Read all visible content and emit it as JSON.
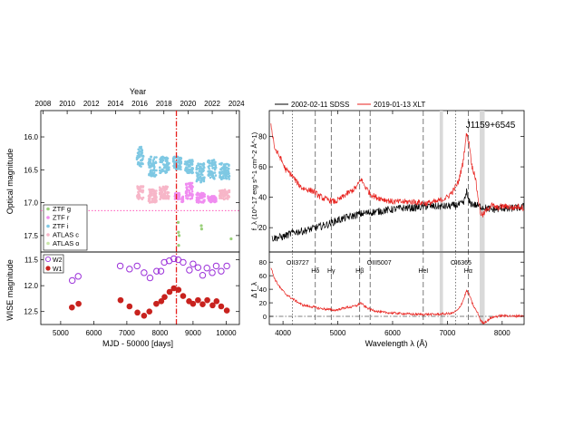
{
  "chart_data": [
    {
      "type": "scatter",
      "panel": "optical-light-curve",
      "xlabel": "",
      "ylabel": "Optical magnitude",
      "top_axis_label": "Year",
      "top_ticks": [
        "2008",
        "2010",
        "2012",
        "2014",
        "2016",
        "2018",
        "2020",
        "2022",
        "2024"
      ],
      "top_tick_mjd": [
        4466,
        5197,
        5927,
        6658,
        7388,
        8119,
        8849,
        9580,
        10310
      ],
      "xlim": [
        4400,
        10400
      ],
      "ylim": [
        17.75,
        15.6
      ],
      "yticks": [
        "16.0",
        "16.5",
        "17.0",
        "17.5"
      ],
      "grid": false,
      "legend": {
        "position": "bottom-left",
        "entries": [
          "ZTF g",
          "ZTF r",
          "ZTF i",
          "ATLAS c",
          "ATLAS o"
        ]
      },
      "series": [
        {
          "name": "ZTF i",
          "color": "#7ec8e3",
          "ranges": [
            [
              7300,
              7500,
              16.15,
              16.45
            ],
            [
              7650,
              7900,
              16.3,
              16.6
            ],
            [
              7990,
              8280,
              16.3,
              16.55
            ],
            [
              8400,
              8650,
              16.3,
              16.5
            ],
            [
              8750,
              9000,
              16.35,
              16.55
            ],
            [
              9100,
              9350,
              16.4,
              16.7
            ],
            [
              9450,
              9700,
              16.35,
              16.65
            ],
            [
              9800,
              10100,
              16.4,
              16.65
            ]
          ]
        },
        {
          "name": "ZTF r",
          "color": "#f08cf0",
          "ranges": [
            [
              8450,
              8600,
              16.85,
              16.95
            ],
            [
              8650,
              8700,
              16.9,
              17.0
            ],
            [
              8780,
              9000,
              16.7,
              16.95
            ],
            [
              9100,
              9350,
              16.85,
              17.0
            ],
            [
              9450,
              9700,
              16.9,
              17.0
            ]
          ]
        },
        {
          "name": "ATLAS o",
          "color": "#f7b6c8",
          "ranges": [
            [
              7300,
              7500,
              16.75,
              16.95
            ],
            [
              7650,
              7900,
              16.8,
              17.0
            ],
            [
              7990,
              8280,
              16.75,
              16.95
            ],
            [
              9800,
              10100,
              16.8,
              16.95
            ]
          ]
        },
        {
          "name": "ZTF g",
          "color": "#9ad07a",
          "points": [
            [
              8550,
              17.3
            ],
            [
              8560,
              17.45
            ],
            [
              8580,
              17.5
            ],
            [
              8565,
              17.65
            ],
            [
              9250,
              17.35
            ],
            [
              9260,
              17.4
            ],
            [
              10150,
              17.55
            ]
          ]
        }
      ],
      "annotations": {
        "vertical_line_mjd": 8497,
        "horizontal_line_mag": 17.12,
        "ztf_i_upper_envelope": [
          [
            7300,
            16.08
          ],
          [
            7700,
            16.22
          ],
          [
            8000,
            16.05
          ],
          [
            8300,
            16.12
          ],
          [
            8500,
            16.18
          ],
          [
            8750,
            16.22
          ],
          [
            9100,
            16.28
          ],
          [
            9450,
            16.22
          ],
          [
            9800,
            16.28
          ],
          [
            10100,
            16.32
          ]
        ]
      }
    },
    {
      "type": "scatter",
      "panel": "wise-light-curve",
      "xlabel": "MJD - 50000 [days]",
      "ylabel": "WISE magnitude",
      "xlim": [
        4400,
        10400
      ],
      "xticks": [
        "5000",
        "6000",
        "7000",
        "8000",
        "9000",
        "10000"
      ],
      "ylim": [
        12.75,
        11.35
      ],
      "yticks": [
        "11.5",
        "12.0",
        "12.5"
      ],
      "legend": {
        "position": "top-left",
        "entries": [
          "W2",
          "W1"
        ]
      },
      "series": [
        {
          "name": "W2",
          "marker": "open-circle",
          "color": "#9b30d9",
          "x": [
            5350,
            5530,
            6800,
            7080,
            7310,
            7520,
            7700,
            7900,
            8030,
            8130,
            8280,
            8420,
            8550,
            8700,
            8890,
            9000,
            9150,
            9290,
            9420,
            9580,
            9700,
            9850,
            10020
          ],
          "y": [
            11.9,
            11.82,
            11.62,
            11.68,
            11.62,
            11.75,
            11.85,
            11.72,
            11.72,
            11.55,
            11.52,
            11.48,
            11.5,
            11.55,
            11.7,
            11.58,
            11.65,
            11.8,
            11.66,
            11.75,
            11.62,
            11.72,
            11.62
          ]
        },
        {
          "name": "W1",
          "marker": "filled-circle",
          "color": "#c8221e",
          "x": [
            5340,
            5540,
            6810,
            7080,
            7320,
            7520,
            7680,
            7890,
            8040,
            8140,
            8290,
            8420,
            8560,
            8700,
            8880,
            9000,
            9150,
            9290,
            9430,
            9590,
            9710,
            9850,
            10020
          ],
          "y": [
            12.42,
            12.35,
            12.28,
            12.4,
            12.52,
            12.58,
            12.5,
            12.35,
            12.3,
            12.22,
            12.12,
            12.05,
            12.08,
            12.2,
            12.3,
            12.35,
            12.28,
            12.36,
            12.28,
            12.38,
            12.3,
            12.4,
            12.48
          ]
        }
      ],
      "annotations": {
        "vertical_line_mjd": 8497
      }
    },
    {
      "type": "line",
      "panel": "optical-spectrum",
      "title": "J1159+6545",
      "xlim": [
        3750,
        8400
      ],
      "ylim": [
        4,
        97
      ],
      "ylabel": "f_λ (10^-17 erg s^-1 cm^-2 Å^-1)",
      "yticks": [
        "20",
        "40",
        "60",
        "80"
      ],
      "legend": {
        "position": "top",
        "entries": [
          "2002-02-11 SDSS",
          "2019-01-13 XLT"
        ]
      },
      "series": [
        {
          "name": "2002-02-11 SDSS",
          "color": "#000000",
          "x": [
            3800,
            4000,
            4200,
            4400,
            4600,
            4800,
            5000,
            5200,
            5400,
            5600,
            5800,
            6000,
            6200,
            6400,
            6600,
            6800,
            7000,
            7200,
            7300,
            7350,
            7380,
            7420,
            7500,
            7600,
            7700,
            7800,
            7900,
            8000,
            8100,
            8200,
            8300,
            8400
          ],
          "y": [
            13,
            14,
            17,
            18,
            20,
            22,
            25,
            27,
            29,
            30,
            31,
            32,
            33,
            33,
            34,
            34,
            34,
            35,
            36,
            44,
            38,
            36,
            35,
            34,
            33,
            32,
            32,
            33,
            32,
            33,
            33,
            34
          ]
        },
        {
          "name": "2019-01-13 XLT",
          "color": "#e8201c",
          "x": [
            3780,
            3850,
            3950,
            4050,
            4150,
            4250,
            4350,
            4450,
            4550,
            4650,
            4750,
            4850,
            4950,
            5050,
            5150,
            5250,
            5350,
            5420,
            5500,
            5600,
            5700,
            5800,
            5900,
            6000,
            6200,
            6400,
            6600,
            6800,
            7000,
            7100,
            7200,
            7280,
            7350,
            7400,
            7450,
            7500,
            7560,
            7600,
            7650,
            7700,
            7800,
            7900,
            8000,
            8100,
            8200,
            8300,
            8400
          ],
          "y": [
            88,
            72,
            66,
            58,
            55,
            50,
            46,
            45,
            44,
            41,
            39,
            38,
            37,
            39,
            42,
            44,
            47,
            52,
            47,
            42,
            40,
            39,
            38,
            37,
            37,
            37,
            36,
            37,
            40,
            44,
            50,
            62,
            82,
            75,
            60,
            55,
            40,
            30,
            28,
            31,
            35,
            33,
            34,
            34,
            33,
            34,
            33
          ]
        }
      ],
      "line_labels": [
        "OII3727",
        "Hδ",
        "Hγ",
        "Hβ",
        "OIII5007",
        "HeI",
        "OI6365",
        "Hα"
      ],
      "line_wavelengths": [
        4170,
        4590,
        4880,
        5400,
        5590,
        6560,
        7150,
        7380
      ],
      "shaded_bands": [
        [
          6860,
          6920
        ],
        [
          7590,
          7680
        ]
      ]
    },
    {
      "type": "line",
      "panel": "difference-spectrum",
      "xlabel": "Wavelength λ (Å)",
      "ylabel": "Δ f_λ",
      "xlim": [
        3750,
        8400
      ],
      "xticks": [
        "4000",
        "5000",
        "6000",
        "7000",
        "8000"
      ],
      "ylim": [
        -12,
        95
      ],
      "yticks": [
        "0",
        "20",
        "40",
        "60",
        "80"
      ],
      "series": [
        {
          "name": "",
          "color": "#e8201c",
          "x": [
            3780,
            3850,
            3950,
            4050,
            4150,
            4250,
            4350,
            4450,
            4550,
            4650,
            4750,
            4850,
            4950,
            5050,
            5150,
            5250,
            5350,
            5420,
            5500,
            5600,
            5700,
            5800,
            6000,
            6200,
            6400,
            6600,
            6800,
            7000,
            7100,
            7200,
            7280,
            7350,
            7400,
            7450,
            7500,
            7560,
            7600,
            7650,
            7700,
            7800,
            7900,
            8000,
            8100,
            8200,
            8300,
            8400
          ],
          "y": [
            72,
            55,
            42,
            33,
            27,
            22,
            17,
            15,
            14,
            12,
            11,
            10,
            9,
            11,
            13,
            14,
            16,
            20,
            14,
            10,
            8,
            6,
            5,
            4,
            3,
            3,
            3,
            4,
            5,
            10,
            22,
            38,
            32,
            20,
            12,
            4,
            -5,
            -10,
            -8,
            -2,
            0,
            1,
            1,
            0,
            1,
            0
          ]
        }
      ],
      "zero_line": 0
    }
  ]
}
